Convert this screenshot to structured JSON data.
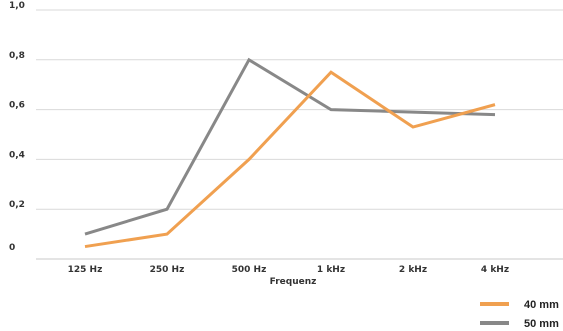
{
  "chart_data": {
    "type": "line",
    "title": "",
    "xlabel": "Frequenz",
    "ylabel": "",
    "categories": [
      "125 Hz",
      "250 Hz",
      "500 Hz",
      "1 kHz",
      "2 kHz",
      "4 kHz"
    ],
    "yticks": [
      "0",
      "0,2",
      "0,4",
      "0,6",
      "0,8",
      "1,0"
    ],
    "ylim": [
      0,
      1.0
    ],
    "grid": true,
    "legend_position": "bottom-right",
    "series": [
      {
        "name": "40 mm",
        "color": "#f0a050",
        "values": [
          0.05,
          0.1,
          0.4,
          0.75,
          0.53,
          0.62
        ]
      },
      {
        "name": "50 mm",
        "color": "#888888",
        "values": [
          0.1,
          0.2,
          0.8,
          0.6,
          0.59,
          0.58
        ]
      }
    ]
  }
}
